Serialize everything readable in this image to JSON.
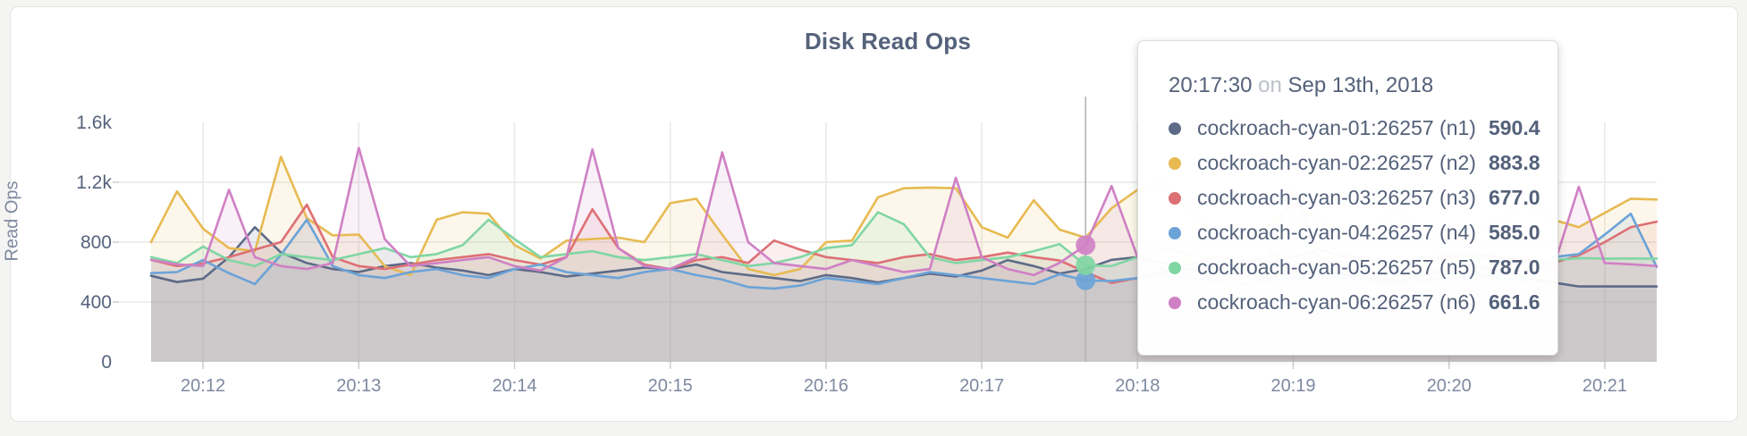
{
  "card": {
    "title": "Disk Read Ops"
  },
  "y_axis": {
    "label": "Read Ops",
    "ticks": [
      {
        "label": "0",
        "value": 0
      },
      {
        "label": "400",
        "value": 400
      },
      {
        "label": "800",
        "value": 800
      },
      {
        "label": "1.2k",
        "value": 1200
      },
      {
        "label": "1.6k",
        "value": 1600
      }
    ]
  },
  "x_axis": {
    "ticks": [
      "20:12",
      "20:13",
      "20:14",
      "20:15",
      "20:16",
      "20:17",
      "20:18",
      "20:19",
      "20:20",
      "20:21"
    ]
  },
  "chart_data": {
    "type": "line",
    "title": "Disk Read Ops",
    "ylabel": "Read Ops",
    "ylim": [
      0,
      1600
    ],
    "grid": true,
    "x_start": "20:11:40",
    "x_interval_seconds": 10,
    "x_tick_labels": [
      "20:12",
      "20:13",
      "20:14",
      "20:15",
      "20:16",
      "20:17",
      "20:18",
      "20:19",
      "20:20",
      "20:21"
    ],
    "series": [
      {
        "name": "cockroach-cyan-01:26257 (n1)",
        "node": "n1",
        "color": "#5d6b88",
        "values": [
          575,
          533,
          556,
          700,
          900,
          730,
          660,
          620,
          600,
          640,
          660,
          630,
          610,
          580,
          620,
          600,
          570,
          590,
          610,
          630,
          620,
          650,
          600,
          580,
          560,
          540,
          580,
          560,
          530,
          560,
          590,
          570,
          610,
          680,
          640,
          590.4,
          620,
          682,
          700,
          660,
          620,
          600,
          580,
          560,
          600,
          620,
          580,
          560,
          540,
          580,
          620,
          640,
          600,
          560,
          530,
          504,
          504,
          504,
          504
        ]
      },
      {
        "name": "cockroach-cyan-02:26257 (n2)",
        "node": "n2",
        "color": "#e7ba52",
        "values": [
          800,
          1140,
          890,
          760,
          740,
          1370,
          960,
          845,
          850,
          640,
          580,
          950,
          1000,
          990,
          780,
          690,
          810,
          820,
          830,
          800,
          1060,
          1090,
          850,
          620,
          580,
          620,
          800,
          810,
          1100,
          1160,
          1165,
          1160,
          900,
          830,
          1080,
          883.8,
          830,
          1026,
          1150,
          1200,
          1000,
          850,
          800,
          900,
          1050,
          950,
          850,
          900,
          1000,
          900,
          800,
          850,
          950,
          1050,
          950,
          900,
          996,
          1090,
          1085
        ]
      },
      {
        "name": "cockroach-cyan-03:26257 (n3)",
        "node": "n3",
        "color": "#dd7075",
        "values": [
          682,
          640,
          658,
          700,
          750,
          800,
          1050,
          700,
          640,
          620,
          650,
          680,
          700,
          720,
          680,
          650,
          700,
          1020,
          760,
          650,
          620,
          680,
          700,
          660,
          811,
          750,
          700,
          680,
          660,
          700,
          720,
          680,
          700,
          730,
          700,
          677,
          600,
          527,
          560,
          600,
          650,
          700,
          680,
          660,
          700,
          750,
          700,
          680,
          660,
          680,
          700,
          720,
          700,
          680,
          660,
          711,
          800,
          900,
          937
        ]
      },
      {
        "name": "cockroach-cyan-04:26257 (n4)",
        "node": "n4",
        "color": "#6ba3d8",
        "values": [
          593,
          600,
          680,
          593,
          520,
          715,
          950,
          640,
          580,
          560,
          600,
          620,
          580,
          560,
          620,
          650,
          600,
          580,
          560,
          600,
          620,
          580,
          550,
          500,
          490,
          510,
          560,
          540,
          520,
          560,
          600,
          580,
          560,
          540,
          520,
          585,
          545,
          540,
          560,
          580,
          560,
          540,
          520,
          540,
          560,
          580,
          560,
          540,
          520,
          540,
          560,
          580,
          560,
          540,
          700,
          720,
          850,
          990,
          634
        ]
      },
      {
        "name": "cockroach-cyan-05:26257 (n5)",
        "node": "n5",
        "color": "#80d6a3",
        "values": [
          700,
          660,
          770,
          680,
          640,
          720,
          700,
          680,
          720,
          760,
          700,
          720,
          780,
          950,
          820,
          700,
          720,
          740,
          700,
          680,
          700,
          720,
          680,
          640,
          660,
          700,
          760,
          780,
          1000,
          920,
          700,
          660,
          680,
          700,
          740,
          787,
          645,
          640,
          700,
          760,
          720,
          680,
          660,
          700,
          750,
          800,
          720,
          680,
          660,
          700,
          720,
          700,
          680,
          660,
          680,
          693,
          690,
          690,
          690
        ]
      },
      {
        "name": "cockroach-cyan-06:26257 (n6)",
        "node": "n6",
        "color": "#cf80c4",
        "values": [
          682,
          652,
          640,
          1150,
          700,
          640,
          620,
          660,
          1430,
          820,
          640,
          660,
          680,
          700,
          640,
          610,
          700,
          1420,
          760,
          640,
          620,
          700,
          1400,
          800,
          660,
          640,
          620,
          680,
          640,
          600,
          620,
          1230,
          700,
          620,
          580,
          661.6,
          780,
          1175,
          700,
          620,
          600,
          640,
          660,
          700,
          1150,
          700,
          620,
          600,
          580,
          600,
          620,
          640,
          620,
          600,
          620,
          1170,
          660,
          652,
          640
        ]
      }
    ]
  },
  "tooltip": {
    "time": "20:17:30",
    "on_word": "on",
    "date": "Sep 13th, 2018",
    "rows": [
      {
        "name": "cockroach-cyan-01:26257 (n1)",
        "value": "590.4",
        "color": "#5d6b88"
      },
      {
        "name": "cockroach-cyan-02:26257 (n2)",
        "value": "883.8",
        "color": "#e7ba52"
      },
      {
        "name": "cockroach-cyan-03:26257 (n3)",
        "value": "677.0",
        "color": "#dd7075"
      },
      {
        "name": "cockroach-cyan-04:26257 (n4)",
        "value": "585.0",
        "color": "#6ba3d8"
      },
      {
        "name": "cockroach-cyan-05:26257 (n5)",
        "value": "787.0",
        "color": "#80d6a3"
      },
      {
        "name": "cockroach-cyan-06:26257 (n6)",
        "value": "661.6",
        "color": "#cf80c4"
      }
    ]
  },
  "hover": {
    "guideline_index": 36,
    "dots": [
      {
        "node": "n4",
        "color": "#6ba3d8"
      },
      {
        "node": "n5",
        "color": "#80d6a3"
      },
      {
        "node": "n6",
        "color": "#cf80c4"
      }
    ]
  }
}
